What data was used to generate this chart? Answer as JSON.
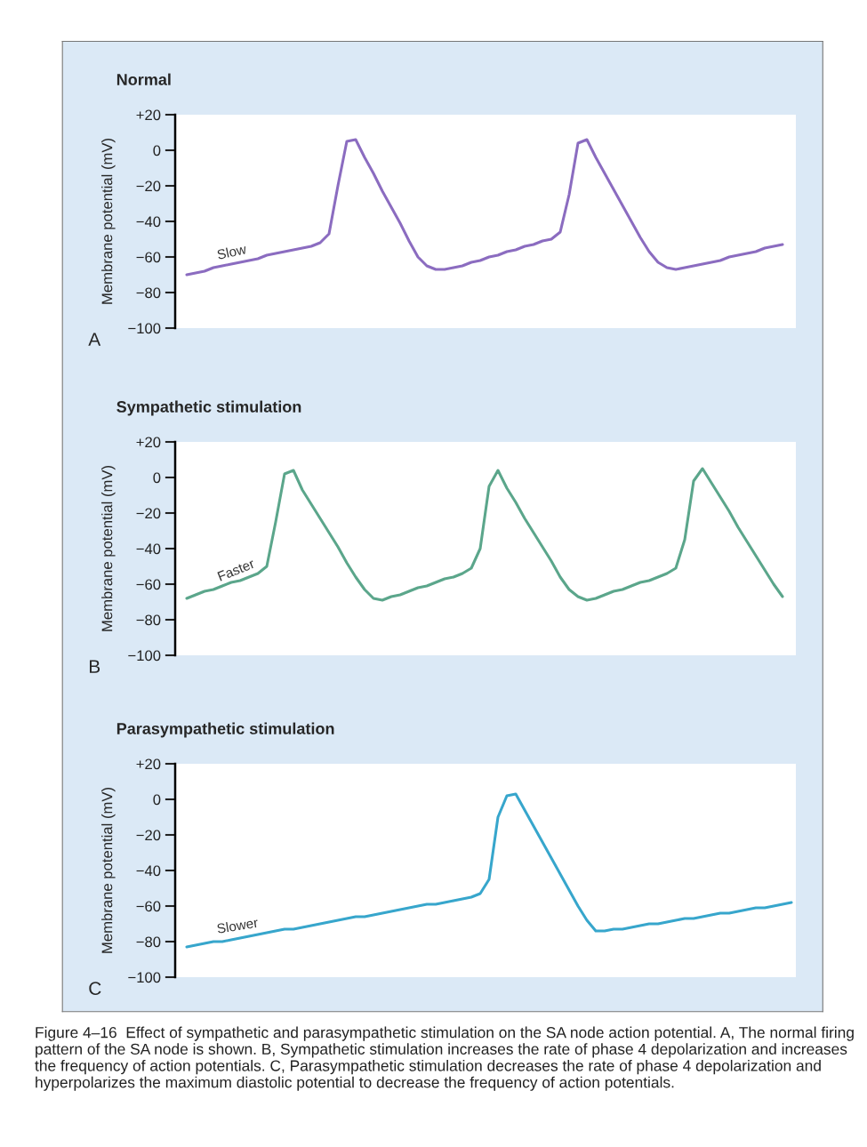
{
  "chart_data": [
    {
      "type": "line",
      "title": "Normal",
      "ylabel": "Membrane potential (mV)",
      "ylim": [
        -100,
        20
      ],
      "yticks": [
        {
          "value": 20,
          "label": "+20"
        },
        0,
        {
          "value": -20,
          "label": "−20"
        },
        {
          "value": -40,
          "label": "−40"
        },
        {
          "value": -60,
          "label": "−60"
        },
        {
          "value": -80,
          "label": "−80"
        },
        {
          "value": -100,
          "label": "−100"
        }
      ],
      "categories": [
        null,
        null,
        null,
        null,
        null,
        null,
        null,
        null,
        null,
        null,
        null,
        null,
        null,
        null,
        null,
        null,
        null,
        null,
        null,
        null,
        null,
        null,
        null,
        null,
        null,
        null,
        null,
        null,
        null,
        null,
        null,
        null,
        null,
        null,
        null,
        null,
        null,
        null,
        null,
        null,
        null,
        null,
        null,
        null,
        null,
        null,
        null,
        null,
        null,
        null,
        null,
        null,
        null,
        null,
        null,
        null,
        null,
        null,
        null,
        null,
        null,
        null,
        null,
        null,
        null,
        null,
        null,
        null,
        null
      ],
      "tick_labels": "y",
      "grid": false,
      "legend": false,
      "marker": "none",
      "line_style": "solid",
      "series": [
        {
          "name": "Slow",
          "color": "#8b6cc0",
          "values": [
            -70,
            -69,
            -68,
            -66,
            -65,
            -64,
            -63,
            -62,
            -61,
            -59,
            -58,
            -57,
            -56,
            -55,
            -54,
            -52,
            -47,
            -20,
            5,
            6,
            -4,
            -13,
            -23,
            -32,
            -41,
            -51,
            -60,
            -65,
            -67,
            -67,
            -66,
            -65,
            -63,
            -62,
            -60,
            -59,
            -57,
            -56,
            -54,
            -53,
            -51,
            -50,
            -46,
            -25,
            4,
            6,
            -4,
            -13,
            -22,
            -31,
            -40,
            -49,
            -57,
            -63,
            -66,
            -67,
            -66,
            -65,
            -64,
            -63,
            -62,
            -60,
            -59,
            -58,
            -57,
            -55,
            -54,
            -53,
            null
          ]
        }
      ],
      "annotations": [
        "A"
      ]
    },
    {
      "type": "line",
      "title": "Sympathetic stimulation",
      "ylabel": "Membrane potential (mV)",
      "ylim": [
        -100,
        20
      ],
      "yticks": [
        {
          "value": 20,
          "label": "+20"
        },
        0,
        {
          "value": -20,
          "label": "−20"
        },
        {
          "value": -40,
          "label": "−40"
        },
        {
          "value": -60,
          "label": "−60"
        },
        {
          "value": -80,
          "label": "−80"
        },
        {
          "value": -100,
          "label": "−100"
        }
      ],
      "categories": [
        null,
        null,
        null,
        null,
        null,
        null,
        null,
        null,
        null,
        null,
        null,
        null,
        null,
        null,
        null,
        null,
        null,
        null,
        null,
        null,
        null,
        null,
        null,
        null,
        null,
        null,
        null,
        null,
        null,
        null,
        null,
        null,
        null,
        null,
        null,
        null,
        null,
        null,
        null,
        null,
        null,
        null,
        null,
        null,
        null,
        null,
        null,
        null,
        null,
        null,
        null,
        null,
        null,
        null,
        null,
        null,
        null,
        null,
        null,
        null,
        null,
        null,
        null,
        null,
        null,
        null,
        null,
        null,
        null
      ],
      "tick_labels": "y",
      "grid": false,
      "legend": false,
      "marker": "none",
      "line_style": "solid",
      "series": [
        {
          "name": "Faster",
          "color": "#5ba68b",
          "values": [
            -68,
            -66,
            -64,
            -63,
            -61,
            -59,
            -58,
            -56,
            -54,
            -50,
            -25,
            2,
            4,
            -7,
            -15,
            -23,
            -31,
            -39,
            -48,
            -56,
            -63,
            -68,
            -69,
            -67,
            -66,
            -64,
            -62,
            -61,
            -59,
            -57,
            -56,
            -54,
            -51,
            -40,
            -5,
            4,
            -6,
            -14,
            -23,
            -31,
            -39,
            -47,
            -56,
            -63,
            -67,
            -69,
            -68,
            -66,
            -64,
            -63,
            -61,
            -59,
            -58,
            -56,
            -54,
            -51,
            -35,
            -2,
            5,
            -3,
            -11,
            -19,
            -28,
            -36,
            -44,
            -52,
            -60,
            -67,
            null
          ]
        }
      ],
      "annotations": [
        "B"
      ]
    },
    {
      "type": "line",
      "title": "Parasympathetic stimulation",
      "ylabel": "Membrane potential (mV)",
      "ylim": [
        -100,
        20
      ],
      "yticks": [
        {
          "value": 20,
          "label": "+20"
        },
        0,
        {
          "value": -20,
          "label": "−20"
        },
        {
          "value": -40,
          "label": "−40"
        },
        {
          "value": -60,
          "label": "−60"
        },
        {
          "value": -80,
          "label": "−80"
        },
        {
          "value": -100,
          "label": "−100"
        }
      ],
      "categories": [
        null,
        null,
        null,
        null,
        null,
        null,
        null,
        null,
        null,
        null,
        null,
        null,
        null,
        null,
        null,
        null,
        null,
        null,
        null,
        null,
        null,
        null,
        null,
        null,
        null,
        null,
        null,
        null,
        null,
        null,
        null,
        null,
        null,
        null,
        null,
        null,
        null,
        null,
        null,
        null,
        null,
        null,
        null,
        null,
        null,
        null,
        null,
        null,
        null,
        null,
        null,
        null,
        null,
        null,
        null,
        null,
        null,
        null,
        null,
        null,
        null,
        null,
        null,
        null,
        null,
        null,
        null,
        null,
        null
      ],
      "tick_labels": "y",
      "grid": false,
      "legend": false,
      "marker": "none",
      "line_style": "solid",
      "series": [
        {
          "name": "Slower",
          "color": "#37a6cc",
          "values": [
            -83,
            -82,
            -81,
            -80,
            -80,
            -79,
            -78,
            -77,
            -76,
            -75,
            -74,
            -73,
            -73,
            -72,
            -71,
            -70,
            -69,
            -68,
            -67,
            -66,
            -66,
            -65,
            -64,
            -63,
            -62,
            -61,
            -60,
            -59,
            -59,
            -58,
            -57,
            -56,
            -55,
            -53,
            -45,
            -10,
            2,
            3,
            -6,
            -15,
            -24,
            -33,
            -42,
            -51,
            -60,
            -68,
            -74,
            -74,
            -73,
            -73,
            -72,
            -71,
            -70,
            -70,
            -69,
            -68,
            -67,
            -67,
            -66,
            -65,
            -64,
            -64,
            -63,
            -62,
            -61,
            -61,
            -60,
            -59,
            -58
          ]
        }
      ],
      "annotations": [
        "C",
        "Figure 4–16  Effect of sympathetic and parasympathetic stimulation on the SA node action potential. A, The normal firing pattern of the SA node is shown. B, Sympathetic stimulation increases the rate of phase 4 depolarization and increases the frequency of action potentials. C, Parasympathetic stimulation decreases the rate of phase 4 depolarization and hyperpolarizes the maximum diastolic potential to decrease the frequency of action potentials."
      ]
    }
  ]
}
